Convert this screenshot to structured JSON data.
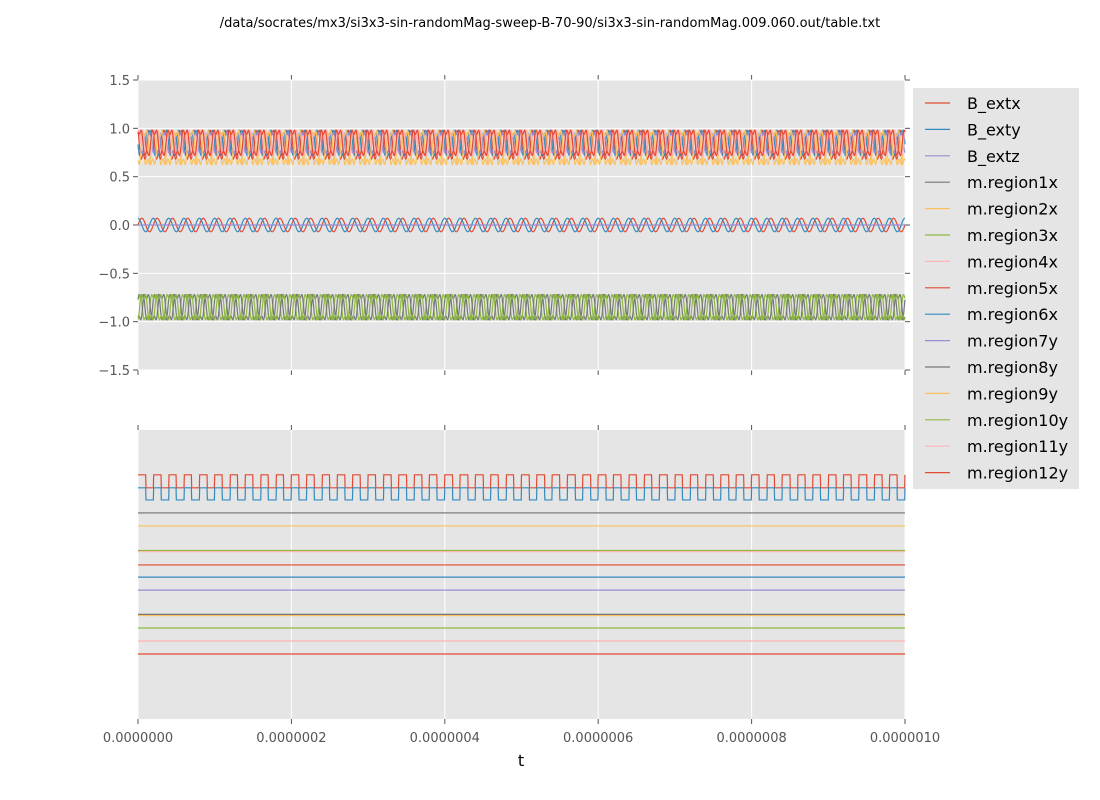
{
  "chart_data": [
    {
      "type": "line",
      "title": "/data/socrates/mx3/si3x3-sin-randomMag-sweep-B-70-90/si3x3-sin-randomMag.009.060.out/table.txt",
      "xlabel": "",
      "ylabel": "",
      "xlim": [
        0,
        1e-06
      ],
      "ylim": [
        -1.5,
        1.5
      ],
      "yticks": [
        "1.5",
        "1.0",
        "0.5",
        "0.0",
        "−0.5",
        "−1.0",
        "−1.5"
      ],
      "ytick_values": [
        1.5,
        1.0,
        0.5,
        0.0,
        -0.5,
        -1.0,
        -1.5
      ],
      "grid": true,
      "oscillation_cycles": 50,
      "series": [
        {
          "name": "B_extx",
          "color": "#E24A33",
          "center": 0.0,
          "amplitude": 0.07,
          "phase": 0
        },
        {
          "name": "B_exty",
          "color": "#348ABD",
          "center": 0.0,
          "amplitude": 0.07,
          "phase": 1.57
        },
        {
          "name": "B_extz",
          "color": "#988ED5",
          "center": 0.0,
          "amplitude": 0.0,
          "phase": 0
        },
        {
          "name": "m.region1x",
          "color": "#777777",
          "center": -0.85,
          "amplitude": 0.15,
          "phase": 0.3
        },
        {
          "name": "m.region2x",
          "color": "#FBC15E",
          "center": 0.8,
          "amplitude": 0.2,
          "phase": 0.8
        },
        {
          "name": "m.region3x",
          "color": "#8EBA42",
          "center": -0.85,
          "amplitude": 0.15,
          "phase": 1.4
        },
        {
          "name": "m.region4x",
          "color": "#FFB5B8",
          "center": 0.85,
          "amplitude": 0.15,
          "phase": 2.0
        },
        {
          "name": "m.region5x",
          "color": "#E24A33",
          "center": 0.83,
          "amplitude": 0.17,
          "phase": 2.6
        },
        {
          "name": "m.region6x",
          "color": "#348ABD",
          "center": 0.85,
          "amplitude": 0.15,
          "phase": 3.2
        },
        {
          "name": "m.region7y",
          "color": "#988ED5",
          "center": 0.85,
          "amplitude": 0.12,
          "phase": 3.8
        },
        {
          "name": "m.region8y",
          "color": "#777777",
          "center": -0.85,
          "amplitude": 0.15,
          "phase": 4.4
        },
        {
          "name": "m.region9y",
          "color": "#FBC15E",
          "center": 0.8,
          "amplitude": 0.2,
          "phase": 5.0
        },
        {
          "name": "m.region10y",
          "color": "#8EBA42",
          "center": -0.85,
          "amplitude": 0.15,
          "phase": 5.6
        },
        {
          "name": "m.region11y",
          "color": "#FFB5B8",
          "center": 0.85,
          "amplitude": 0.15,
          "phase": 0.6
        },
        {
          "name": "m.region12y",
          "color": "#E24A33",
          "center": 0.85,
          "amplitude": 0.15,
          "phase": 1.1
        }
      ]
    },
    {
      "type": "line",
      "xlabel": "t",
      "xlim": [
        0,
        1e-06
      ],
      "ylim": [
        0,
        1
      ],
      "xticks": [
        "0.0000000",
        "0.0000002",
        "0.0000004",
        "0.0000006",
        "0.0000008",
        "0.0000010"
      ],
      "xtick_values": [
        0,
        2e-07,
        4e-07,
        6e-07,
        8e-07,
        1e-06
      ],
      "grid": true,
      "oscillation_cycles": 50,
      "series": [
        {
          "name": "B_extx",
          "color": "#E24A33",
          "low": 0.8,
          "high": 0.845,
          "square": true
        },
        {
          "name": "B_exty",
          "color": "#348ABD",
          "low": 0.758,
          "high": 0.8,
          "square": true
        },
        {
          "name": "B_extz",
          "color": "#988ED5",
          "level": 0.713
        },
        {
          "name": "m.region1x",
          "color": "#777777",
          "level": 0.713
        },
        {
          "name": "m.region2x",
          "color": "#FBC15E",
          "level": 0.668
        },
        {
          "name": "m.region3x",
          "color": "#8EBA42",
          "level": 0.583
        },
        {
          "name": "m.region4x",
          "color": "#FFB5B8",
          "level": 0.579
        },
        {
          "name": "m.region5x",
          "color": "#E24A33",
          "level": 0.533
        },
        {
          "name": "m.region6x",
          "color": "#348ABD",
          "level": 0.491
        },
        {
          "name": "m.region7y",
          "color": "#988ED5",
          "level": 0.446
        },
        {
          "name": "m.region8y",
          "color": "#777777",
          "level": 0.362
        },
        {
          "name": "m.region9y",
          "color": "#FBC15E",
          "level": 0.358
        },
        {
          "name": "m.region10y",
          "color": "#8EBA42",
          "level": 0.315
        },
        {
          "name": "m.region11y",
          "color": "#FFB5B8",
          "level": 0.27
        },
        {
          "name": "m.region12y",
          "color": "#E24A33",
          "level": 0.225
        }
      ]
    }
  ],
  "legend": {
    "placement": "right"
  },
  "colors": {
    "axes_bg": "#E5E5E5",
    "grid": "#FFFFFF"
  }
}
